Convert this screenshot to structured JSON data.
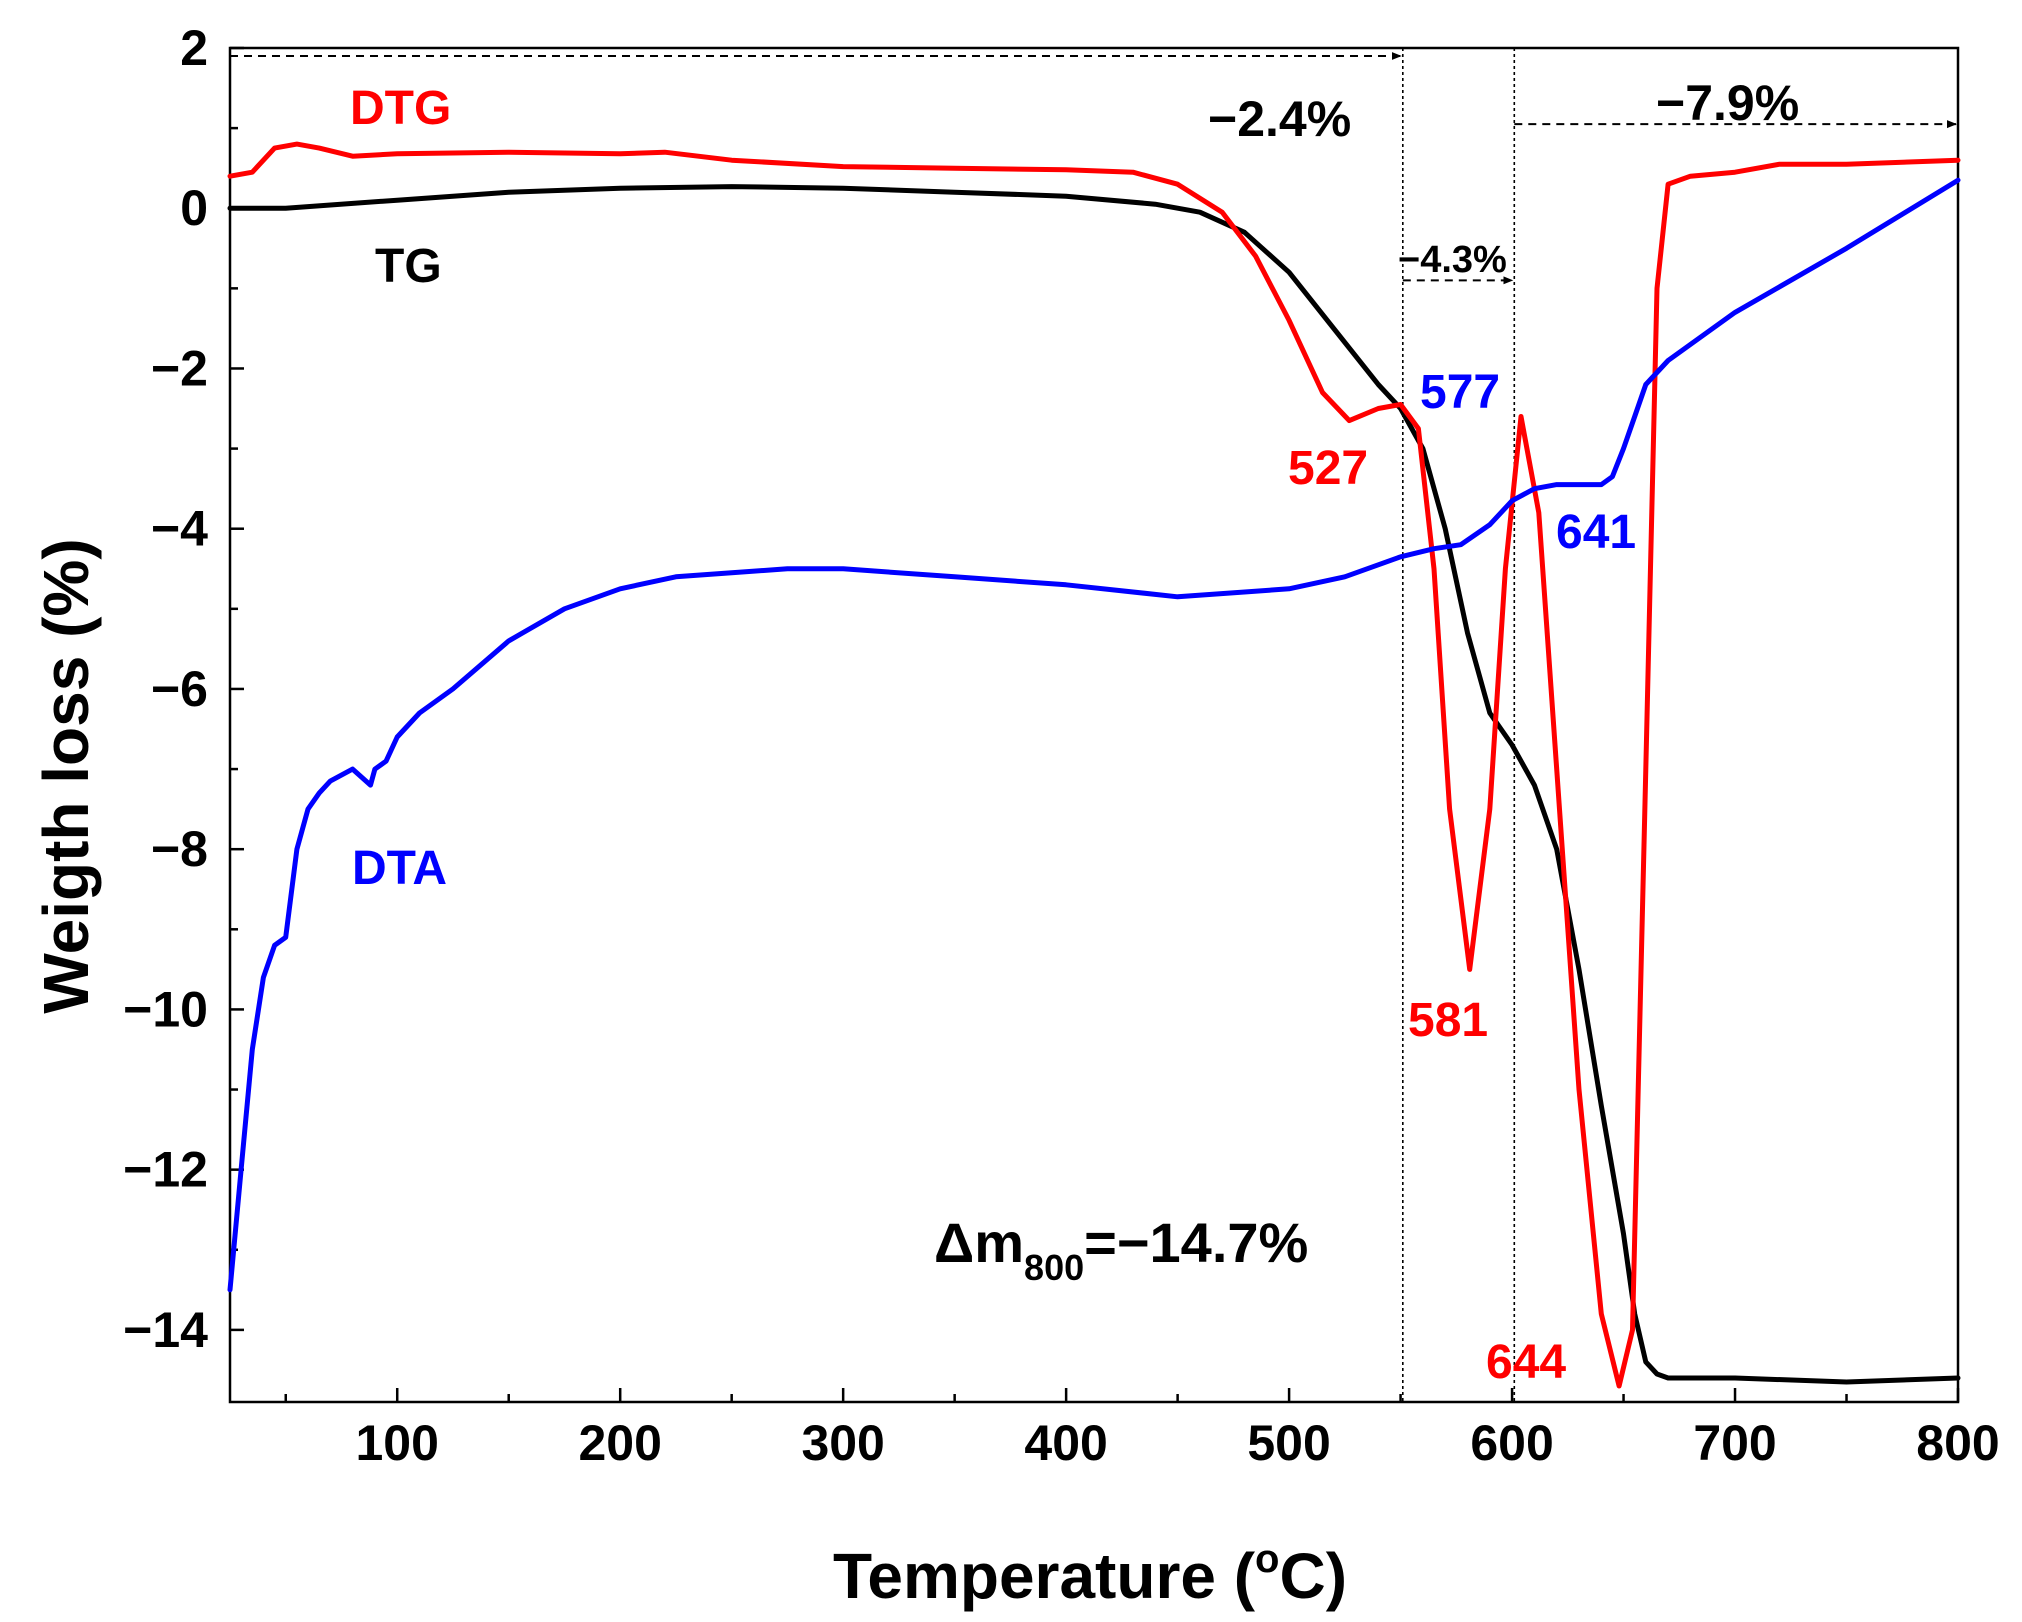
{
  "chart_data": {
    "type": "line",
    "xlabel": "Temperature (",
    "xlabel_sup": "o",
    "xlabel_end": "C)",
    "ylabel": "Weigth loss (%)",
    "xlim": [
      25,
      800
    ],
    "ylim": [
      -14.9,
      2
    ],
    "xticks": [
      100,
      200,
      300,
      400,
      500,
      600,
      700,
      800
    ],
    "xtick_labels": [
      "100",
      "200",
      "300",
      "400",
      "500",
      "600",
      "700",
      "800"
    ],
    "yticks": [
      2,
      0,
      -2,
      -4,
      -6,
      -8,
      -10,
      -12,
      -14
    ],
    "ytick_labels": [
      "2",
      "0",
      "−2",
      "−4",
      "−6",
      "−8",
      "−10",
      "−12",
      "−14"
    ],
    "colors": {
      "TG": "#000000",
      "DTG": "#ff0000",
      "DTA": "#0000ff"
    },
    "series": [
      {
        "name": "TG",
        "x": [
          25,
          50,
          100,
          150,
          200,
          250,
          300,
          350,
          400,
          440,
          460,
          480,
          500,
          520,
          540,
          550,
          560,
          570,
          580,
          590,
          600,
          610,
          620,
          630,
          640,
          650,
          655,
          660,
          665,
          670,
          700,
          750,
          800
        ],
        "y": [
          0.0,
          0.0,
          0.1,
          0.2,
          0.25,
          0.27,
          0.25,
          0.2,
          0.15,
          0.05,
          -0.05,
          -0.3,
          -0.8,
          -1.5,
          -2.2,
          -2.5,
          -3.0,
          -4.0,
          -5.3,
          -6.3,
          -6.7,
          -7.2,
          -8.0,
          -9.5,
          -11.2,
          -12.8,
          -13.8,
          -14.4,
          -14.55,
          -14.6,
          -14.6,
          -14.65,
          -14.6
        ]
      },
      {
        "name": "DTG",
        "x": [
          25,
          35,
          45,
          55,
          65,
          80,
          100,
          150,
          200,
          220,
          250,
          300,
          350,
          400,
          430,
          450,
          470,
          485,
          500,
          515,
          527,
          540,
          550,
          558,
          565,
          572,
          581,
          590,
          597,
          604,
          612,
          620,
          630,
          640,
          648,
          654,
          660,
          665,
          670,
          680,
          700,
          720,
          750,
          800
        ],
        "y": [
          0.4,
          0.45,
          0.75,
          0.8,
          0.75,
          0.65,
          0.68,
          0.7,
          0.68,
          0.7,
          0.6,
          0.52,
          0.5,
          0.48,
          0.45,
          0.3,
          -0.05,
          -0.6,
          -1.4,
          -2.3,
          -2.65,
          -2.5,
          -2.45,
          -2.75,
          -4.5,
          -7.5,
          -9.5,
          -7.5,
          -4.5,
          -2.6,
          -3.8,
          -7.0,
          -11.0,
          -13.8,
          -14.7,
          -14.0,
          -7.0,
          -1.0,
          0.3,
          0.4,
          0.45,
          0.55,
          0.55,
          0.6
        ]
      },
      {
        "name": "DTA",
        "x": [
          25,
          30,
          35,
          40,
          45,
          50,
          55,
          60,
          65,
          70,
          80,
          88,
          90,
          95,
          100,
          110,
          125,
          150,
          175,
          200,
          225,
          250,
          275,
          300,
          350,
          400,
          450,
          500,
          525,
          550,
          565,
          577,
          590,
          600,
          610,
          620,
          630,
          640,
          645,
          650,
          655,
          660,
          670,
          700,
          750,
          800
        ],
        "y": [
          -13.5,
          -12.0,
          -10.5,
          -9.6,
          -9.2,
          -9.1,
          -8.0,
          -7.5,
          -7.3,
          -7.15,
          -7.0,
          -7.2,
          -7.0,
          -6.9,
          -6.6,
          -6.3,
          -6.0,
          -5.4,
          -5.0,
          -4.75,
          -4.6,
          -4.55,
          -4.5,
          -4.5,
          -4.6,
          -4.7,
          -4.85,
          -4.75,
          -4.6,
          -4.35,
          -4.25,
          -4.2,
          -3.95,
          -3.65,
          -3.5,
          -3.45,
          -3.45,
          -3.45,
          -3.35,
          -3.0,
          -2.6,
          -2.2,
          -1.9,
          -1.3,
          -0.5,
          0.35
        ]
      }
    ],
    "annotations": {
      "dtg_label": "DTG",
      "tg_label": "TG",
      "dta_label": "DTA",
      "pct1": "−2.4%",
      "pct2": "−4.3%",
      "pct3": "−7.9%",
      "peak527": "527",
      "peak577": "577",
      "peak581": "581",
      "peak641": "641",
      "peak644": "644",
      "dm_prefix": "Δm",
      "dm_sub": "800",
      "dm_suffix": "=−14.7%"
    },
    "vertical_markers_x": [
      551,
      601
    ],
    "arrows": [
      {
        "from_x": 25,
        "to_x": 551,
        "y": 1.9
      },
      {
        "from_x": 551,
        "to_x": 601,
        "y": -0.9
      },
      {
        "from_x": 601,
        "to_x": 800,
        "y": 1.05
      }
    ],
    "grid": false,
    "legend": "none"
  }
}
